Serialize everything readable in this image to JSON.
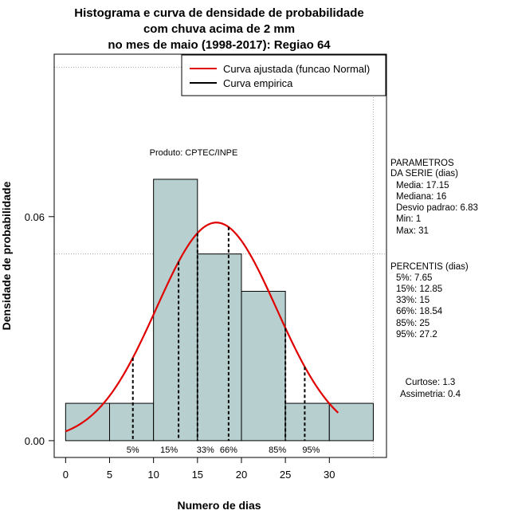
{
  "chart_data": {
    "type": "histogram",
    "title_lines": [
      "Histograma e curva de densidade de probabilidade",
      "com chuva acima de 2 mm",
      "no mes de maio (1998-2017): Regiao 64"
    ],
    "xlabel": "Numero de dias",
    "ylabel": "Densidade de probabilidade",
    "xlim": [
      -1.3,
      36.5
    ],
    "ylim": [
      -0.0045,
      0.1035
    ],
    "x_ticks": [
      0,
      5,
      10,
      15,
      20,
      25,
      30
    ],
    "y_ticks": [
      0.0,
      0.06
    ],
    "y_tick_labels": [
      "0.00",
      "0.06"
    ],
    "grid_x": [
      -1.3,
      35.0
    ],
    "grid_y": [
      0.05,
      0.1
    ],
    "bars": [
      {
        "x0": 0,
        "x1": 5,
        "density": 0.01
      },
      {
        "x0": 5,
        "x1": 10,
        "density": 0.01
      },
      {
        "x0": 10,
        "x1": 15,
        "density": 0.07
      },
      {
        "x0": 15,
        "x1": 20,
        "density": 0.05
      },
      {
        "x0": 20,
        "x1": 25,
        "density": 0.04
      },
      {
        "x0": 25,
        "x1": 30,
        "density": 0.01
      },
      {
        "x0": 30,
        "x1": 35,
        "density": 0.01
      }
    ],
    "bar_color": "#b7cfcf",
    "normal_fit": {
      "mean": 17.15,
      "sd": 6.83,
      "x_from": 0.0,
      "x_to": 31.0,
      "color": "#e00000"
    },
    "percentile_lines": [
      {
        "label": "5%",
        "x": 7.65
      },
      {
        "label": "15%",
        "x": 12.85
      },
      {
        "label": "33%",
        "x": 15
      },
      {
        "label": "66%",
        "x": 18.54
      },
      {
        "label": "85%",
        "x": 25
      },
      {
        "label": "95%",
        "x": 27.2
      }
    ],
    "legend": {
      "position": "top-right",
      "items": [
        {
          "label": "Curva ajustada (funcao Normal)",
          "color": "#e00000"
        },
        {
          "label": "Curva empirica",
          "color": "#000000"
        }
      ]
    },
    "annotation_product": "Produto: CPTEC/INPE",
    "side_panel": {
      "params_title": [
        "PARAMETROS",
        "DA SERIE (dias)"
      ],
      "params": [
        "Media: 17.15",
        "Mediana: 16",
        "Desvio padrao: 6.83",
        "Min: 1",
        "Max: 31"
      ],
      "percentis_title": "PERCENTIS (dias)",
      "percentis": [
        "5%: 7.65",
        "15%: 12.85",
        "33%: 15",
        "66%: 18.54",
        "85%: 25",
        "95%: 27.2"
      ],
      "shape": [
        "Curtose: 1.3",
        "Assimetria: 0.4"
      ]
    }
  }
}
